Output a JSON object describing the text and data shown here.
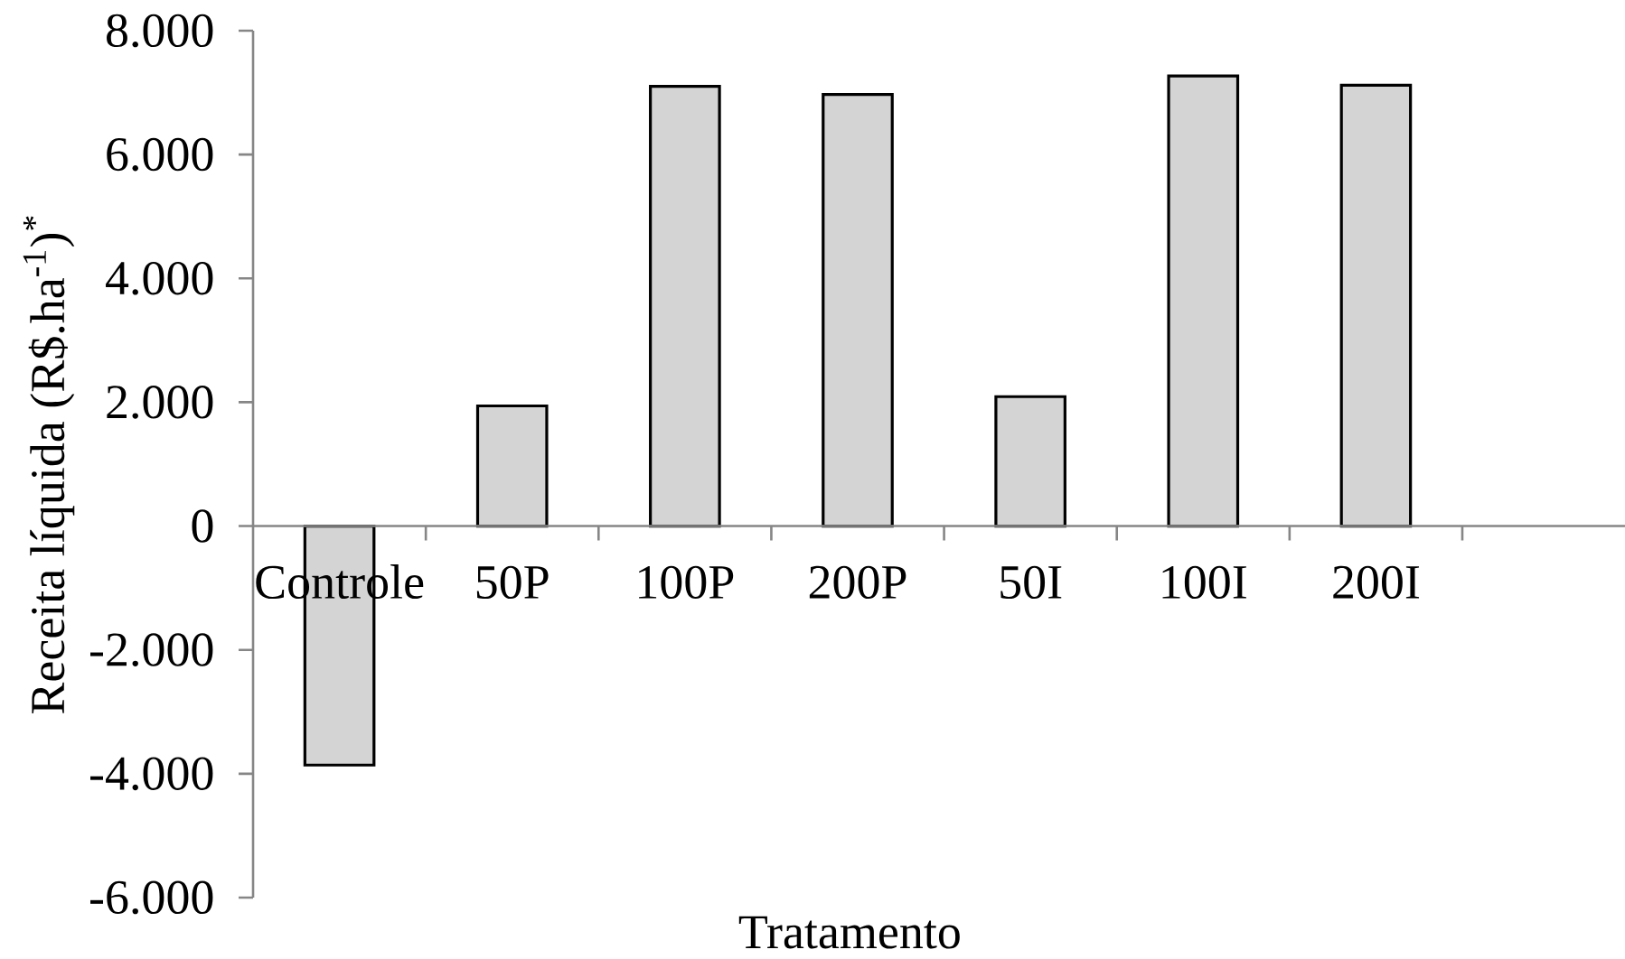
{
  "chart_data": {
    "type": "bar",
    "xlabel": "Tratamento",
    "ylabel": "Receita líquida (R$.ha$^{-1}$)$^{*}$",
    "categories": [
      "Controle",
      "50P",
      "100P",
      "200P",
      "50I",
      "100I",
      "200I"
    ],
    "values": [
      -3860,
      1940,
      7100,
      6970,
      2090,
      7270,
      7120
    ],
    "color": "#d4d4d4",
    "ylim": [
      -6000,
      8000
    ],
    "yticks": [
      {
        "value": -6000,
        "label": "-6.000"
      },
      {
        "value": -4000,
        "label": "-4.000"
      },
      {
        "value": -2000,
        "label": "-2.000"
      },
      0,
      {
        "value": 2000,
        "label": "2.000"
      },
      {
        "value": 4000,
        "label": "4.000"
      },
      {
        "value": 6000,
        "label": "6.000"
      },
      {
        "value": 8000,
        "label": "8.000"
      }
    ]
  }
}
